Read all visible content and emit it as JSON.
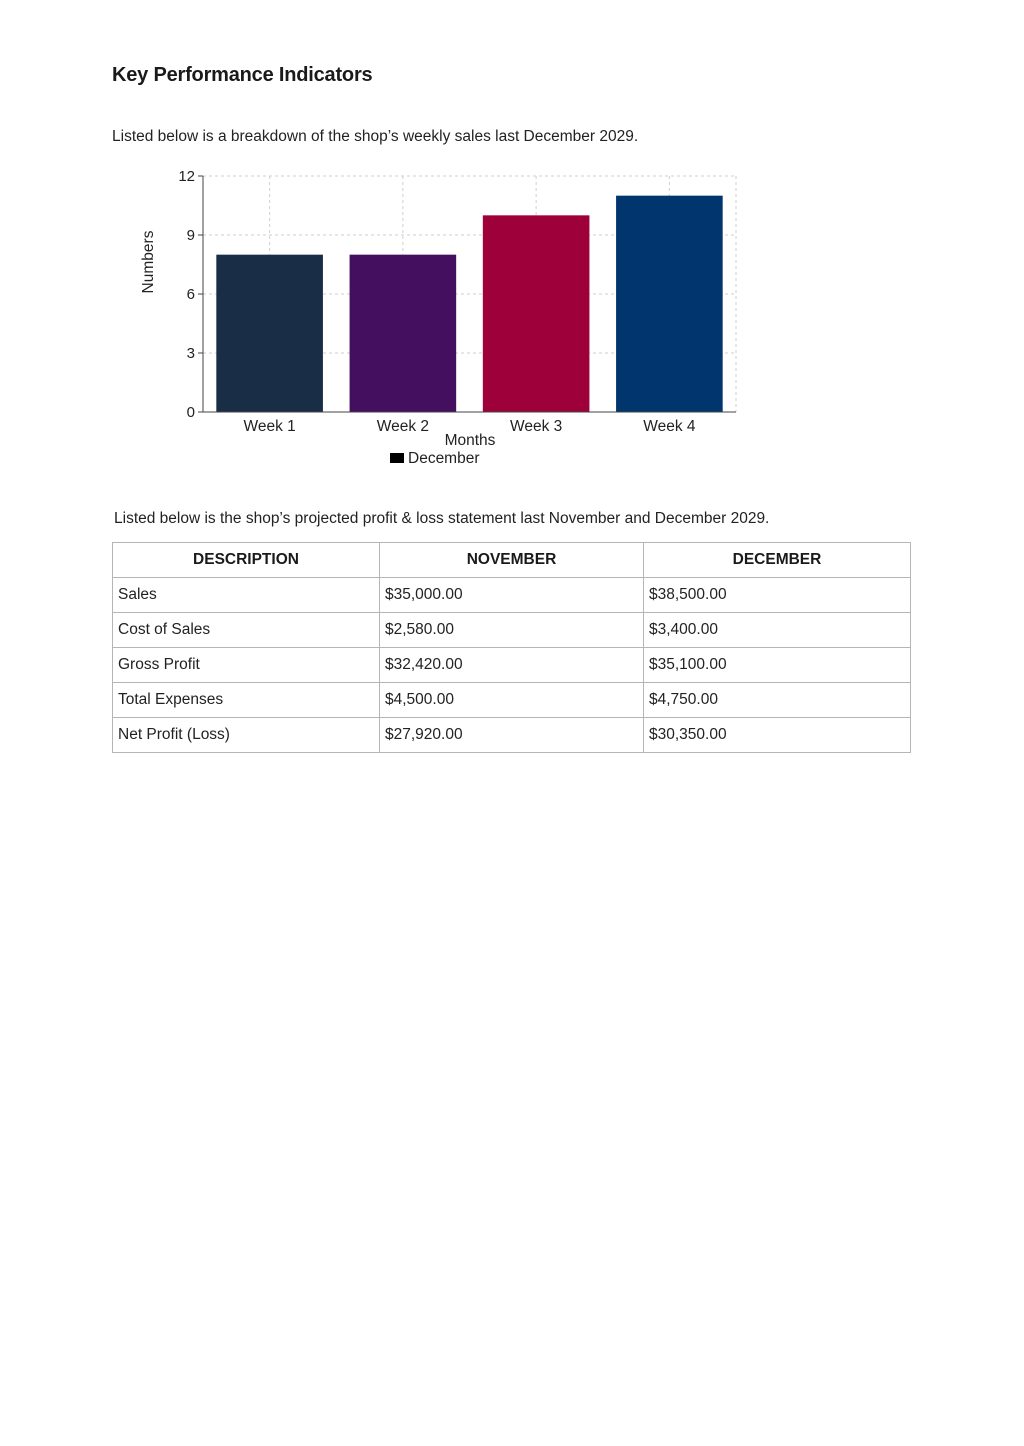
{
  "document": {
    "title": "Key Performance Indicators",
    "intro_sales": "Listed below is a breakdown of the shop’s weekly sales last December 2029.",
    "intro_pl": "Listed below is the shop’s projected profit & loss statement last November and December 2029."
  },
  "chart_data": {
    "type": "bar",
    "categories": [
      "Week 1",
      "Week 2",
      "Week 3",
      "Week 4"
    ],
    "values": [
      8,
      8,
      10,
      11
    ],
    "bar_colors": [
      "#1a2d47",
      "#440f5e",
      "#9e0039",
      "#00356d"
    ],
    "title": "",
    "xlabel": "Months",
    "ylabel": "Numbers",
    "ylim": [
      0,
      12
    ],
    "yticks": [
      0,
      3,
      6,
      9,
      12
    ],
    "grid": true,
    "legend": {
      "entries": [
        "December"
      ],
      "placement": "bottom-center",
      "swatch_color": "#000000"
    }
  },
  "pl_table": {
    "headers": [
      "DESCRIPTION",
      "NOVEMBER",
      "DECEMBER"
    ],
    "rows": [
      [
        "Sales",
        "$35,000.00",
        "$38,500.00"
      ],
      [
        "Cost of Sales",
        "$2,580.00",
        "$3,400.00"
      ],
      [
        "Gross Profit",
        "$32,420.00",
        "$35,100.00"
      ],
      [
        "Total Expenses",
        "$4,500.00",
        "$4,750.00"
      ],
      [
        "Net Profit (Loss)",
        "$27,920.00",
        "$30,350.00"
      ]
    ]
  }
}
